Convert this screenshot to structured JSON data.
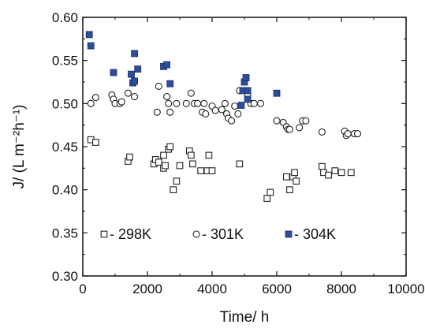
{
  "chart_data": {
    "type": "scatter",
    "xlabel": "Time/ h",
    "ylabel": "J/ (L m⁻²h⁻¹)",
    "xlim": [
      0,
      10000
    ],
    "ylim": [
      0.3,
      0.6
    ],
    "x_ticks": [
      "0",
      "2000",
      "4000",
      "6000",
      "8000",
      "10000"
    ],
    "y_ticks": [
      "0.30",
      "0.35",
      "0.40",
      "0.45",
      "0.50",
      "0.55",
      "0.60"
    ],
    "grid": false,
    "legend_position": "bottom-inside",
    "series": [
      {
        "name": "- 298K",
        "marker": "open-square",
        "color": "#222222",
        "points": [
          [
            250,
            0.458
          ],
          [
            400,
            0.455
          ],
          [
            1400,
            0.433
          ],
          [
            1450,
            0.438
          ],
          [
            2200,
            0.43
          ],
          [
            2250,
            0.435
          ],
          [
            2350,
            0.432
          ],
          [
            2500,
            0.44
          ],
          [
            2500,
            0.425
          ],
          [
            2550,
            0.428
          ],
          [
            2650,
            0.447
          ],
          [
            2700,
            0.45
          ],
          [
            2800,
            0.4
          ],
          [
            2900,
            0.41
          ],
          [
            3000,
            0.428
          ],
          [
            3300,
            0.445
          ],
          [
            3350,
            0.44
          ],
          [
            3400,
            0.43
          ],
          [
            3650,
            0.422
          ],
          [
            3850,
            0.422
          ],
          [
            3900,
            0.44
          ],
          [
            4000,
            0.422
          ],
          [
            4850,
            0.43
          ],
          [
            5700,
            0.39
          ],
          [
            5800,
            0.397
          ],
          [
            6300,
            0.415
          ],
          [
            6400,
            0.4
          ],
          [
            6500,
            0.415
          ],
          [
            6550,
            0.42
          ],
          [
            6600,
            0.41
          ],
          [
            7400,
            0.427
          ],
          [
            7450,
            0.42
          ],
          [
            7600,
            0.417
          ],
          [
            7800,
            0.422
          ],
          [
            8000,
            0.42
          ],
          [
            8300,
            0.42
          ]
        ]
      },
      {
        "name": "- 301K",
        "marker": "open-circle",
        "color": "#222222",
        "points": [
          [
            250,
            0.5
          ],
          [
            400,
            0.507
          ],
          [
            900,
            0.51
          ],
          [
            950,
            0.505
          ],
          [
            1000,
            0.5
          ],
          [
            1150,
            0.5
          ],
          [
            1200,
            0.502
          ],
          [
            1400,
            0.512
          ],
          [
            1600,
            0.508
          ],
          [
            2300,
            0.49
          ],
          [
            2350,
            0.52
          ],
          [
            2600,
            0.508
          ],
          [
            2650,
            0.5
          ],
          [
            2700,
            0.49
          ],
          [
            2900,
            0.5
          ],
          [
            3200,
            0.5
          ],
          [
            3350,
            0.512
          ],
          [
            3450,
            0.5
          ],
          [
            3550,
            0.5
          ],
          [
            3700,
            0.49
          ],
          [
            3750,
            0.5
          ],
          [
            3800,
            0.488
          ],
          [
            4000,
            0.497
          ],
          [
            4100,
            0.492
          ],
          [
            4300,
            0.493
          ],
          [
            4400,
            0.5
          ],
          [
            4450,
            0.488
          ],
          [
            4500,
            0.483
          ],
          [
            4600,
            0.48
          ],
          [
            4700,
            0.497
          ],
          [
            4800,
            0.488
          ],
          [
            4850,
            0.515
          ],
          [
            5100,
            0.51
          ],
          [
            5200,
            0.5
          ],
          [
            5300,
            0.5
          ],
          [
            5500,
            0.5
          ],
          [
            6000,
            0.48
          ],
          [
            6200,
            0.478
          ],
          [
            6300,
            0.473
          ],
          [
            6350,
            0.47
          ],
          [
            6400,
            0.47
          ],
          [
            6700,
            0.472
          ],
          [
            6800,
            0.48
          ],
          [
            6900,
            0.48
          ],
          [
            7400,
            0.467
          ],
          [
            8100,
            0.468
          ],
          [
            8150,
            0.463
          ],
          [
            8200,
            0.465
          ],
          [
            8400,
            0.465
          ],
          [
            8500,
            0.465
          ]
        ]
      },
      {
        "name": "- 304K",
        "marker": "filled-square",
        "color": "#2e4d9b",
        "points": [
          [
            200,
            0.58
          ],
          [
            250,
            0.567
          ],
          [
            950,
            0.536
          ],
          [
            1500,
            0.534
          ],
          [
            1550,
            0.524
          ],
          [
            1600,
            0.526
          ],
          [
            1600,
            0.558
          ],
          [
            1700,
            0.54
          ],
          [
            2500,
            0.543
          ],
          [
            2600,
            0.545
          ],
          [
            2700,
            0.523
          ],
          [
            4900,
            0.498
          ],
          [
            4950,
            0.515
          ],
          [
            5000,
            0.525
          ],
          [
            5050,
            0.53
          ],
          [
            5100,
            0.515
          ],
          [
            5100,
            0.505
          ],
          [
            6000,
            0.512
          ]
        ]
      }
    ]
  }
}
